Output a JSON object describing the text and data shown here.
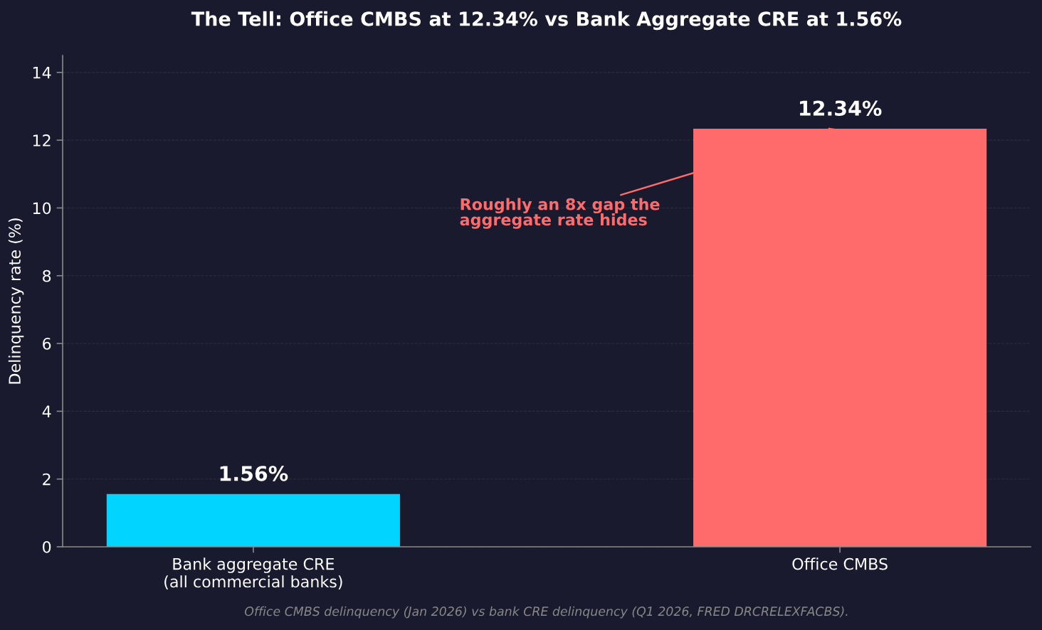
{
  "chart_data": {
    "type": "bar",
    "title": "The Tell: Office CMBS at 12.34% vs Bank Aggregate CRE at 1.56%",
    "ylabel": "Delinquency rate (%)",
    "categories": [
      "Bank aggregate CRE\n(all commercial banks)",
      "Office CMBS"
    ],
    "values": [
      1.56,
      12.34
    ],
    "colors": [
      "#00d4ff",
      "#ff6b6b"
    ],
    "value_labels": [
      "1.56%",
      "12.34%"
    ],
    "ylim": [
      0,
      14.5
    ],
    "yticks": [
      0,
      2,
      4,
      6,
      8,
      10,
      12,
      14
    ],
    "grid": "y",
    "annotations": [
      {
        "text": "Roughly an 8x gap the\naggregate rate hides",
        "x": "Office CMBS",
        "y": 12.34
      },
      "Office CMBS delinquency (Jan 2026) vs bank CRE delinquency (Q1 2026, FRED DRCRELEXFACBS)."
    ]
  }
}
